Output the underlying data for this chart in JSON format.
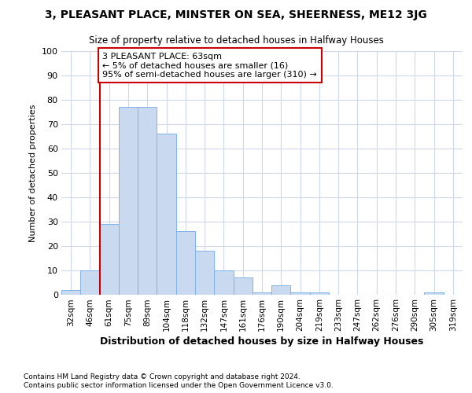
{
  "title1": "3, PLEASANT PLACE, MINSTER ON SEA, SHEERNESS, ME12 3JG",
  "title2": "Size of property relative to detached houses in Halfway Houses",
  "xlabel": "Distribution of detached houses by size in Halfway Houses",
  "ylabel": "Number of detached properties",
  "bar_color": "#c8d9f0",
  "bar_edge_color": "#7fb3e8",
  "categories": [
    "32sqm",
    "46sqm",
    "61sqm",
    "75sqm",
    "89sqm",
    "104sqm",
    "118sqm",
    "132sqm",
    "147sqm",
    "161sqm",
    "176sqm",
    "190sqm",
    "204sqm",
    "219sqm",
    "233sqm",
    "247sqm",
    "262sqm",
    "276sqm",
    "290sqm",
    "305sqm",
    "319sqm"
  ],
  "values": [
    2,
    10,
    29,
    77,
    77,
    66,
    26,
    18,
    10,
    7,
    1,
    4,
    1,
    1,
    0,
    0,
    0,
    0,
    0,
    1,
    0
  ],
  "vline_index": 2,
  "vline_color": "#cc0000",
  "annotation_text": "3 PLEASANT PLACE: 63sqm\n← 5% of detached houses are smaller (16)\n95% of semi-detached houses are larger (310) →",
  "annotation_box_facecolor": "#ffffff",
  "annotation_box_edgecolor": "#cc0000",
  "ylim": [
    0,
    100
  ],
  "yticks": [
    0,
    10,
    20,
    30,
    40,
    50,
    60,
    70,
    80,
    90,
    100
  ],
  "footnote1": "Contains HM Land Registry data © Crown copyright and database right 2024.",
  "footnote2": "Contains public sector information licensed under the Open Government Licence v3.0.",
  "background_color": "#ffffff",
  "grid_color": "#d0d8e8"
}
